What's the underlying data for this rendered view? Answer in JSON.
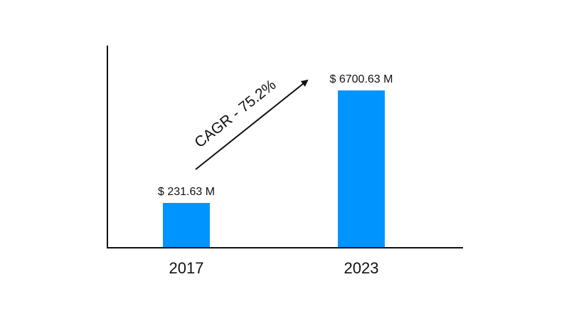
{
  "chart_data": {
    "type": "bar",
    "categories": [
      "2017",
      "2023"
    ],
    "values": [
      231.63,
      6700.63
    ],
    "value_labels": [
      "$ 231.63 M",
      "$ 6700.63 M"
    ],
    "bar_color": "#0094ff",
    "title": "",
    "xlabel": "",
    "ylabel": "",
    "grid": false,
    "annotation": {
      "text": "CAGR - 75.2%",
      "style": "arrow"
    }
  }
}
